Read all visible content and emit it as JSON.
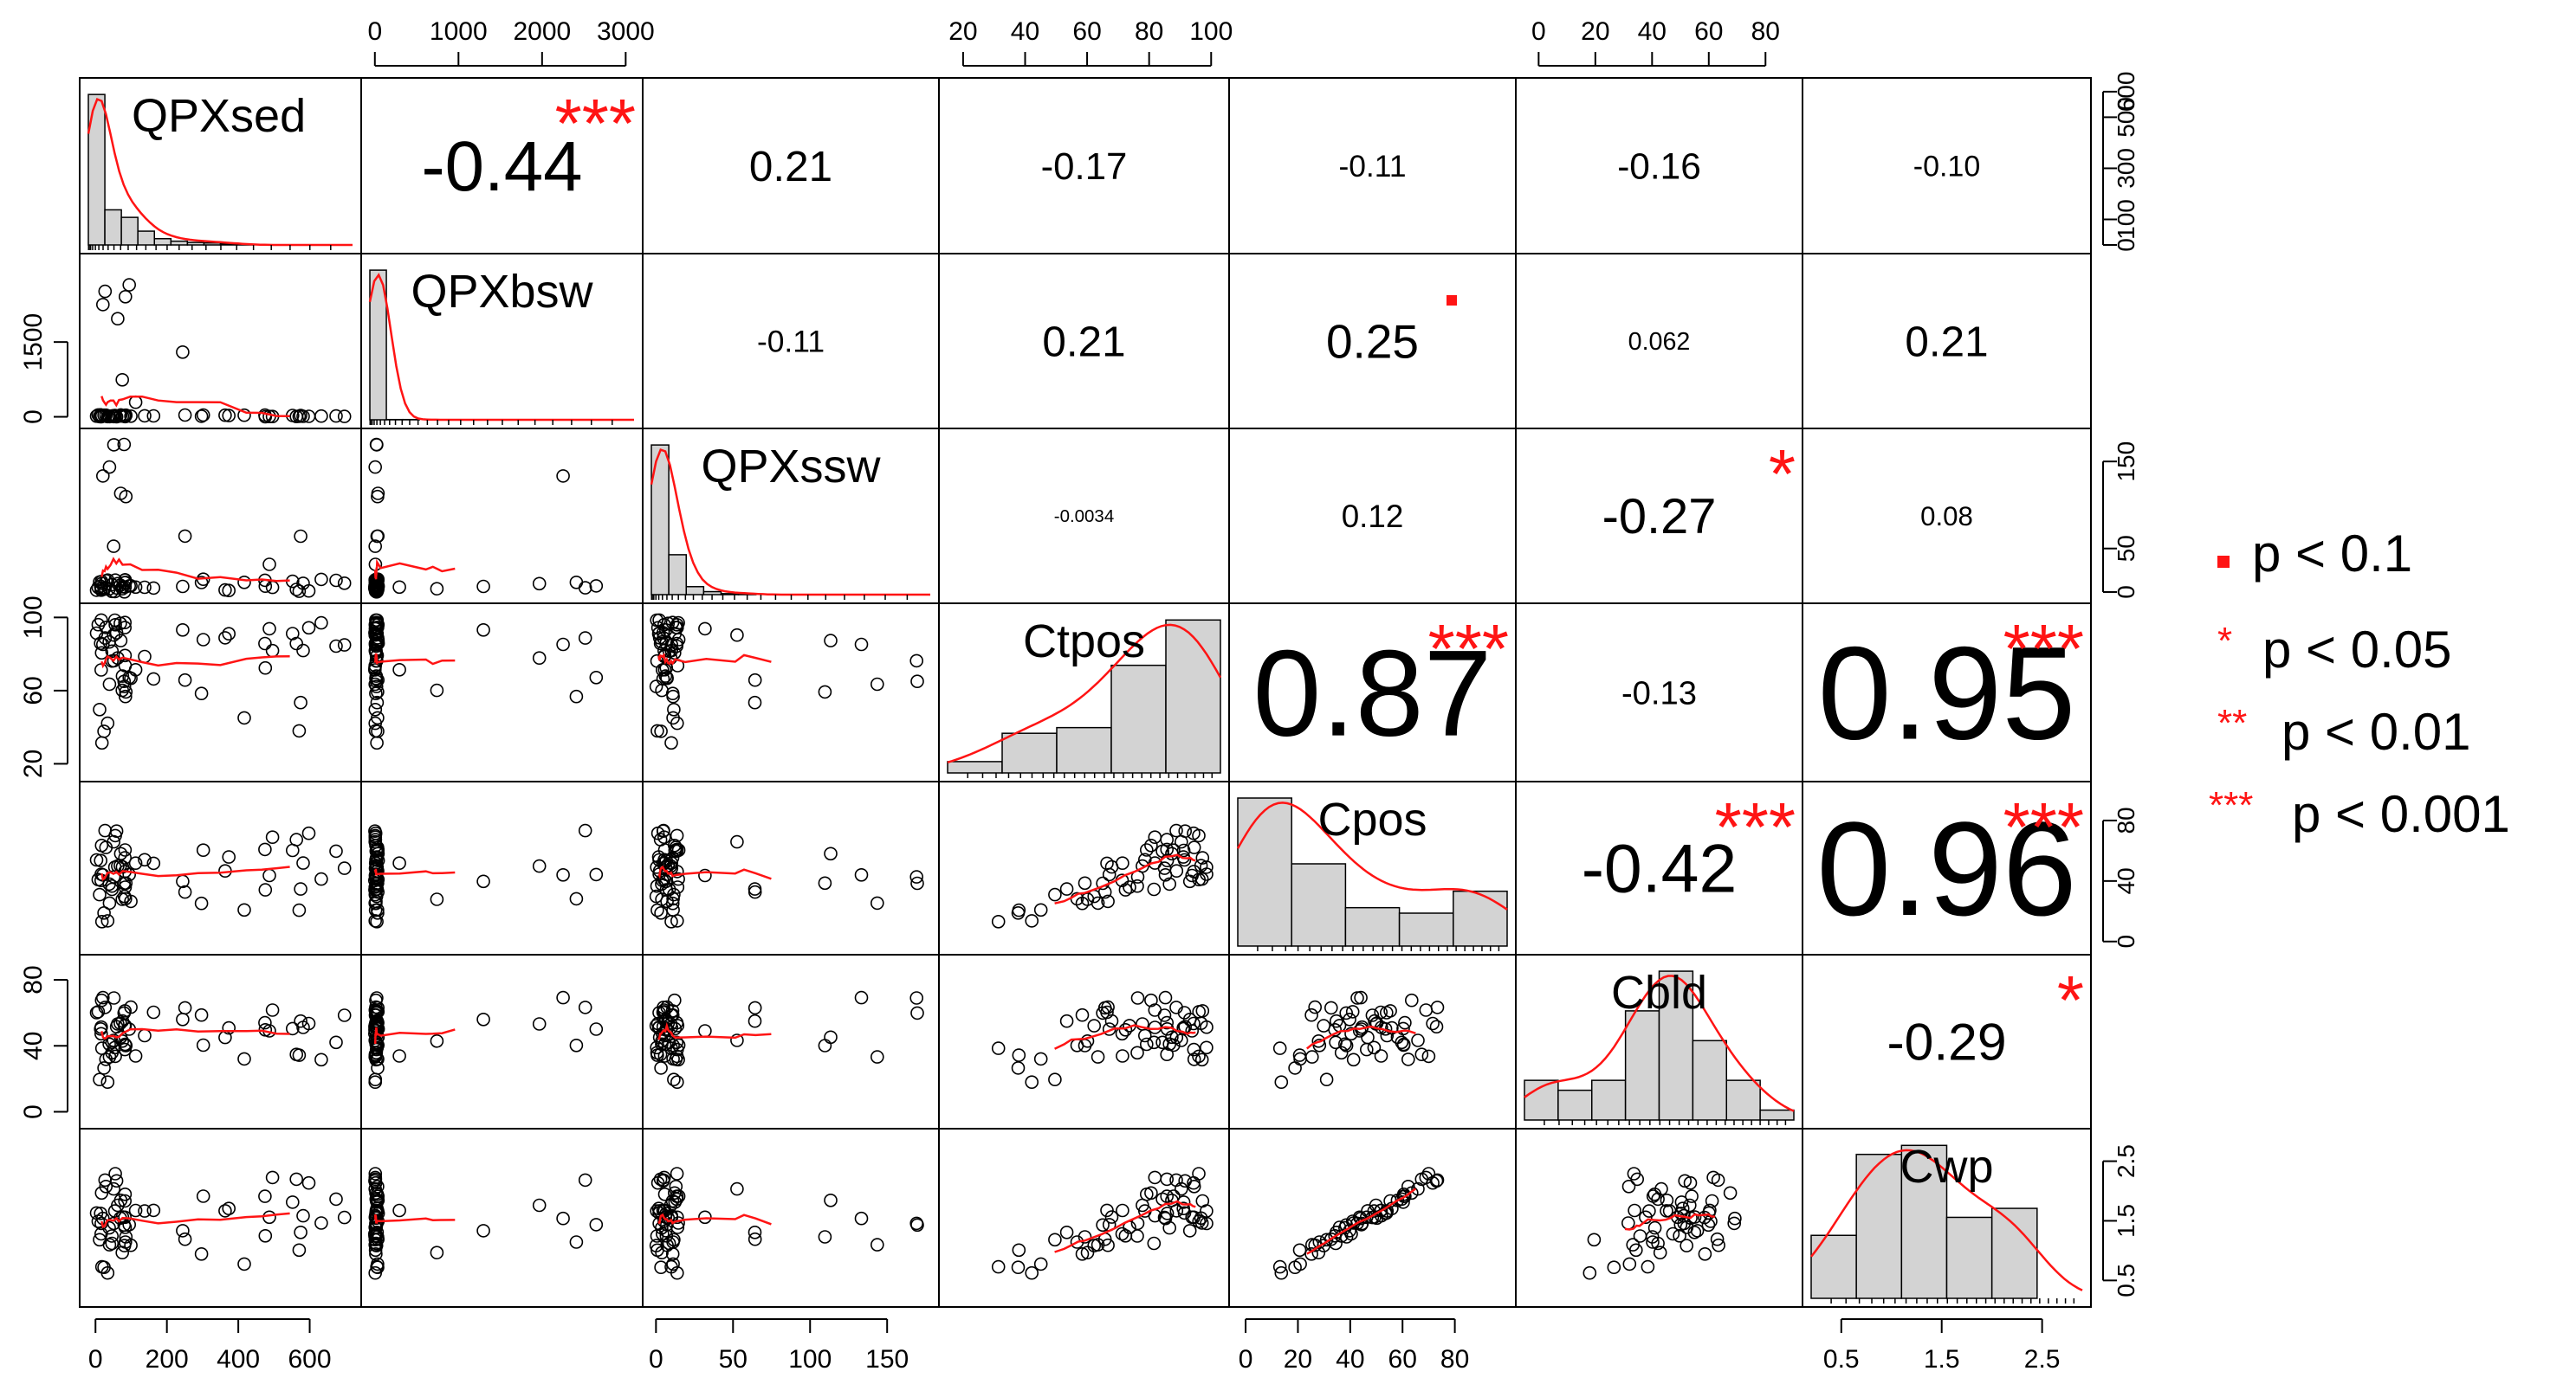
{
  "chart_data": {
    "type": "scatter",
    "chart_kind": "correlation-matrix",
    "variables": [
      "QPXsed",
      "QPXbsw",
      "QPXssw",
      "Ctpos",
      "Cpos",
      "Cbld",
      "Cwp"
    ],
    "axis_ticks": {
      "QPXsed": [
        "0",
        "200",
        "400",
        "600"
      ],
      "QPXbsw": [
        "0",
        "1000",
        "2000",
        "3000"
      ],
      "QPXssw": [
        "0",
        "50",
        "100",
        "150"
      ],
      "Ctpos": [
        "20",
        "40",
        "60",
        "80",
        "100"
      ],
      "Cpos": [
        "0",
        "20",
        "40",
        "60",
        "80"
      ],
      "Cbld": [
        "0",
        "20",
        "40",
        "60",
        "80"
      ],
      "Cwp": [
        "0.5",
        "1.5",
        "2.5"
      ]
    },
    "left_axis_ticks": {
      "QPXbsw": [
        "0",
        "1500"
      ],
      "Ctpos": [
        "20",
        "60",
        "100"
      ],
      "Cbld": [
        "0",
        "40",
        "80"
      ]
    },
    "right_axis_ticks": {
      "QPXsed": [
        "0",
        "100",
        "300",
        "500",
        "600"
      ],
      "QPXssw": [
        "0",
        "50",
        "150"
      ],
      "Cpos": [
        "0",
        "40",
        "80"
      ],
      "Cwp": [
        "0.5",
        "1.5",
        "2.5"
      ]
    },
    "correlations": [
      {
        "row": 0,
        "col": 1,
        "value": "-0.44",
        "sig": "***"
      },
      {
        "row": 0,
        "col": 2,
        "value": "0.21",
        "sig": ""
      },
      {
        "row": 0,
        "col": 3,
        "value": "-0.17",
        "sig": ""
      },
      {
        "row": 0,
        "col": 4,
        "value": "-0.11",
        "sig": ""
      },
      {
        "row": 0,
        "col": 5,
        "value": "-0.16",
        "sig": ""
      },
      {
        "row": 0,
        "col": 6,
        "value": "-0.10",
        "sig": ""
      },
      {
        "row": 1,
        "col": 2,
        "value": "-0.11",
        "sig": ""
      },
      {
        "row": 1,
        "col": 3,
        "value": "0.21",
        "sig": ""
      },
      {
        "row": 1,
        "col": 4,
        "value": "0.25",
        "sig": "."
      },
      {
        "row": 1,
        "col": 5,
        "value": "0.062",
        "sig": ""
      },
      {
        "row": 1,
        "col": 6,
        "value": "0.21",
        "sig": ""
      },
      {
        "row": 2,
        "col": 3,
        "value": "-0.0034",
        "sig": ""
      },
      {
        "row": 2,
        "col": 4,
        "value": "0.12",
        "sig": ""
      },
      {
        "row": 2,
        "col": 5,
        "value": "-0.27",
        "sig": "*"
      },
      {
        "row": 2,
        "col": 6,
        "value": "0.08",
        "sig": ""
      },
      {
        "row": 3,
        "col": 4,
        "value": "0.87",
        "sig": "***"
      },
      {
        "row": 3,
        "col": 5,
        "value": "-0.13",
        "sig": ""
      },
      {
        "row": 3,
        "col": 6,
        "value": "0.95",
        "sig": "***"
      },
      {
        "row": 4,
        "col": 5,
        "value": "-0.42",
        "sig": "***"
      },
      {
        "row": 4,
        "col": 6,
        "value": "0.96",
        "sig": "***"
      },
      {
        "row": 5,
        "col": 6,
        "value": "-0.29",
        "sig": "*"
      }
    ],
    "histograms": [
      {
        "var": "QPXsed",
        "counts": [
          600,
          140,
          110,
          55,
          25,
          15,
          10,
          8,
          5,
          2,
          0,
          0,
          0,
          0,
          0,
          0
        ]
      },
      {
        "var": "QPXbsw",
        "counts": [
          600,
          1,
          1,
          0,
          0,
          0,
          0,
          0,
          0,
          0,
          0,
          0,
          0,
          0,
          0,
          0
        ]
      },
      {
        "var": "QPXssw",
        "counts": [
          150,
          40,
          8,
          3,
          1,
          1,
          0,
          0,
          0,
          0,
          0,
          0,
          0,
          0,
          0,
          0
        ]
      },
      {
        "var": "Ctpos",
        "counts": [
          2,
          7,
          8,
          19,
          27
        ]
      },
      {
        "var": "Cpos",
        "counts": [
          27,
          15,
          7,
          6,
          10
        ]
      },
      {
        "var": "Cbld",
        "counts": [
          4,
          3,
          4,
          11,
          15,
          8,
          4,
          1
        ]
      },
      {
        "var": "Cwp",
        "counts": [
          7,
          16,
          17,
          9,
          10,
          0
        ]
      }
    ],
    "legend": [
      {
        "symbol": "▪",
        "label": "p < 0.1"
      },
      {
        "symbol": "*",
        "label": "p < 0.05"
      },
      {
        "symbol": "**",
        "label": "p < 0.01"
      },
      {
        "symbol": "***",
        "label": "p < 0.001"
      }
    ],
    "colors": {
      "stars": "#ff1414",
      "lowess": "#ff1414",
      "hist_fill": "#d3d3d3",
      "points": "#000000"
    }
  }
}
